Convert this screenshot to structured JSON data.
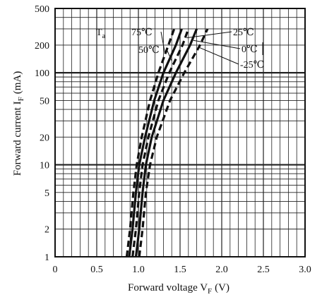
{
  "chart_data": {
    "type": "line",
    "xlabel": "Forward voltage V",
    "xlabel_sub": "F",
    "xlabel_unit": "(V)",
    "ylabel": "Forward current I",
    "ylabel_sub": "F",
    "ylabel_unit": "(mA)",
    "xlim": [
      0,
      3.0
    ],
    "ylim": [
      1,
      500
    ],
    "yscale": "log",
    "grid": true,
    "x_ticks": [
      0,
      0.5,
      1.0,
      1.5,
      2.0,
      2.5,
      3.0
    ],
    "x_tick_labels": [
      "0",
      "0.5",
      "1.0",
      "1.5",
      "2.0",
      "2.5",
      "3.0"
    ],
    "y_ticks": [
      1,
      2,
      5,
      10,
      20,
      50,
      100,
      200,
      500
    ],
    "y_tick_labels": [
      "1",
      "2",
      "5",
      "10",
      "20",
      "50",
      "100",
      "200",
      "500"
    ],
    "parameter_label": "T",
    "parameter_sub": "a",
    "series": [
      {
        "name": "75℃",
        "style": "dashed",
        "points": [
          [
            0.86,
            1
          ],
          [
            0.9,
            2
          ],
          [
            0.94,
            5
          ],
          [
            0.98,
            10
          ],
          [
            1.04,
            20
          ],
          [
            1.14,
            50
          ],
          [
            1.24,
            100
          ],
          [
            1.36,
            200
          ],
          [
            1.43,
            300
          ]
        ]
      },
      {
        "name": "50℃",
        "style": "solid",
        "points": [
          [
            0.89,
            1
          ],
          [
            0.93,
            2
          ],
          [
            0.97,
            5
          ],
          [
            1.01,
            10
          ],
          [
            1.08,
            20
          ],
          [
            1.19,
            50
          ],
          [
            1.3,
            100
          ],
          [
            1.45,
            200
          ],
          [
            1.52,
            300
          ]
        ]
      },
      {
        "name": "25℃",
        "style": "dashed",
        "points": [
          [
            0.93,
            1
          ],
          [
            0.97,
            2
          ],
          [
            1.01,
            5
          ],
          [
            1.05,
            10
          ],
          [
            1.12,
            20
          ],
          [
            1.24,
            50
          ],
          [
            1.37,
            100
          ],
          [
            1.53,
            200
          ],
          [
            1.6,
            300
          ]
        ]
      },
      {
        "name": "0℃",
        "style": "solid",
        "points": [
          [
            0.97,
            1
          ],
          [
            1.01,
            2
          ],
          [
            1.05,
            5
          ],
          [
            1.09,
            10
          ],
          [
            1.16,
            20
          ],
          [
            1.3,
            50
          ],
          [
            1.45,
            100
          ],
          [
            1.62,
            200
          ],
          [
            1.7,
            300
          ]
        ]
      },
      {
        "name": "-25℃",
        "style": "dashed",
        "points": [
          [
            1.01,
            1
          ],
          [
            1.05,
            2
          ],
          [
            1.09,
            5
          ],
          [
            1.14,
            10
          ],
          [
            1.22,
            20
          ],
          [
            1.38,
            50
          ],
          [
            1.55,
            100
          ],
          [
            1.74,
            200
          ],
          [
            1.83,
            300
          ]
        ]
      }
    ]
  }
}
